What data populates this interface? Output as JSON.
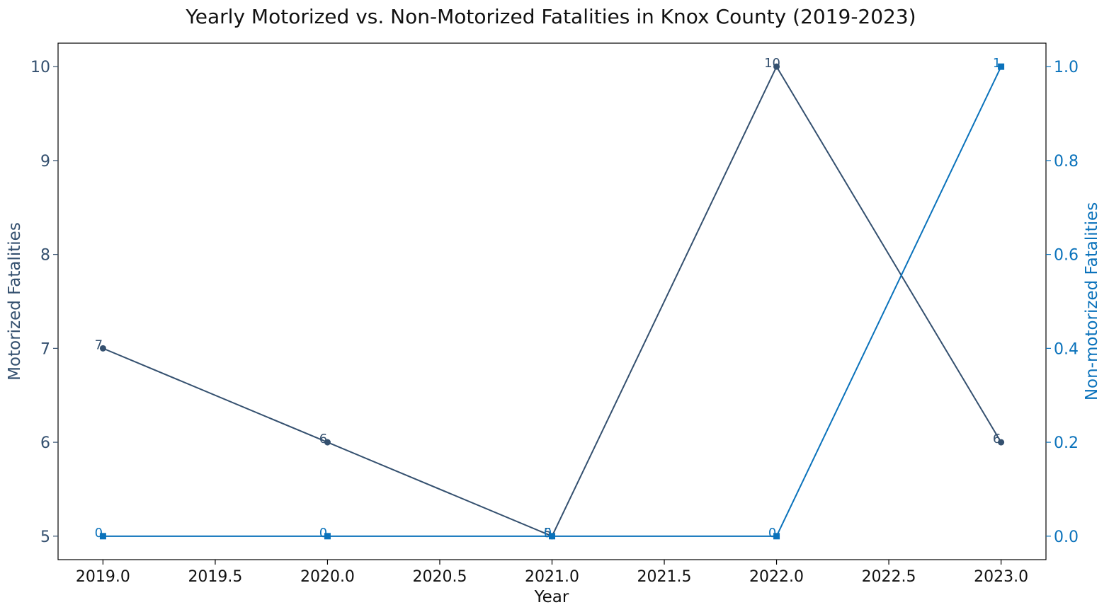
{
  "chart_data": {
    "type": "line",
    "title": "Yearly Motorized vs. Non-Motorized Fatalities in Knox County (2019-2023)",
    "xlabel": "Year",
    "ylabel_left": "Motorized Fatalities",
    "ylabel_right": "Non-motorized Fatalities",
    "x": [
      2019,
      2020,
      2021,
      2022,
      2023
    ],
    "xlim": [
      2018.8,
      2023.2
    ],
    "x_ticks": [
      2019.0,
      2019.5,
      2020.0,
      2020.5,
      2021.0,
      2021.5,
      2022.0,
      2022.5,
      2023.0
    ],
    "x_tick_labels": [
      "2019.0",
      "2019.5",
      "2020.0",
      "2020.5",
      "2021.0",
      "2021.5",
      "2022.0",
      "2022.5",
      "2023.0"
    ],
    "ylim_left": [
      4.75,
      10.25
    ],
    "y_ticks_left": [
      5,
      6,
      7,
      8,
      9,
      10
    ],
    "y_tick_labels_left": [
      "5",
      "6",
      "7",
      "8",
      "9",
      "10"
    ],
    "ylim_right": [
      -0.05,
      1.05
    ],
    "y_ticks_right": [
      0.0,
      0.2,
      0.4,
      0.6,
      0.8,
      1.0
    ],
    "y_tick_labels_right": [
      "0.0",
      "0.2",
      "0.4",
      "0.6",
      "0.8",
      "1.0"
    ],
    "grid": false,
    "series": [
      {
        "axis": "left",
        "values": [
          7,
          6,
          5,
          10,
          6
        ],
        "labels": [
          "7",
          "6",
          "5",
          "10",
          "6"
        ],
        "color": "#34506f",
        "marker": "circle"
      },
      {
        "axis": "right",
        "values": [
          0,
          0,
          0,
          0,
          1
        ],
        "labels": [
          "0",
          "0",
          "0",
          "0",
          "1"
        ],
        "color": "#0a72bb",
        "marker": "square"
      }
    ]
  }
}
